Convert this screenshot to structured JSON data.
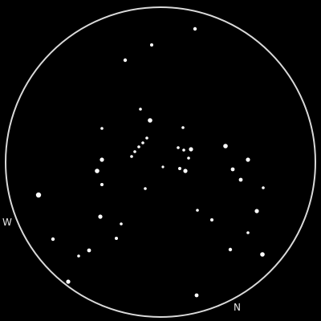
{
  "compass": {
    "west_label": "W",
    "north_label": "N"
  },
  "colors": {
    "background": "#000000",
    "field_circle": "#d9d9d9",
    "star": "#ffffff"
  },
  "star_count": 47
}
